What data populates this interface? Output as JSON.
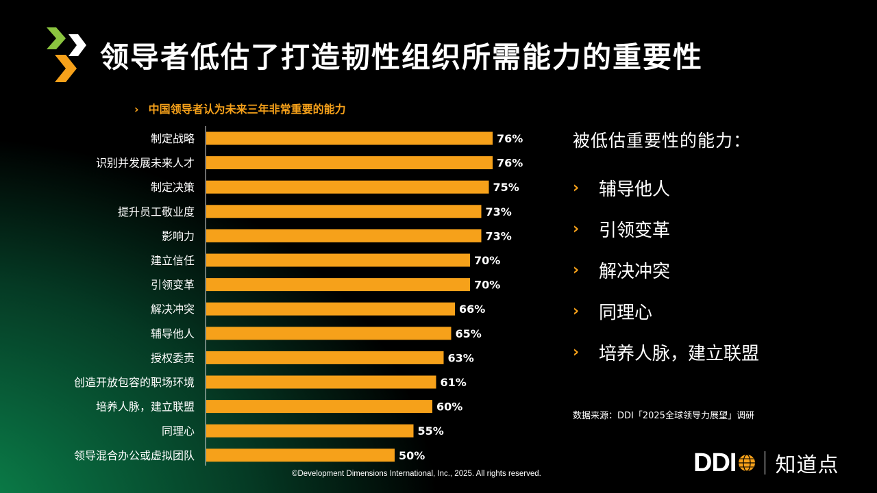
{
  "title": "领导者低估了打造韧性组织所需能力的重要性",
  "chart_data": {
    "type": "bar",
    "orientation": "horizontal",
    "title": "中国领导者认为未来三年非常重要的能力",
    "categories": [
      "制定战略",
      "识别并发展未来人才",
      "制定决策",
      "提升员工敬业度",
      "影响力",
      "建立信任",
      "引领变革",
      "解决冲突",
      "辅导他人",
      "授权委责",
      "创造开放包容的职场环境",
      "培养人脉，建立联盟",
      "同理心",
      "领导混合办公或虚拟团队"
    ],
    "values": [
      76,
      76,
      75,
      73,
      73,
      70,
      70,
      66,
      65,
      63,
      61,
      60,
      55,
      50
    ],
    "value_labels": [
      "76%",
      "76%",
      "75%",
      "73%",
      "73%",
      "70%",
      "70%",
      "66%",
      "65%",
      "63%",
      "61%",
      "60%",
      "55%",
      "50%"
    ],
    "unit": "%",
    "bar_color": "#f6a11a"
  },
  "side_panel": {
    "heading": "被低估重要性的能力：",
    "items": [
      "辅导他人",
      "引领变革",
      "解决冲突",
      "同理心",
      "培养人脉，建立联盟"
    ]
  },
  "chevron": "›",
  "source": "数据来源：DDI「2025全球领导力展望」调研",
  "copyright": "©Development Dimensions International, Inc., 2025. All rights reserved.",
  "brand": {
    "ddi": "DDI",
    "partner": "知道点"
  },
  "colors": {
    "accent": "#f6a11a",
    "logo_green": "#8bc53f"
  }
}
